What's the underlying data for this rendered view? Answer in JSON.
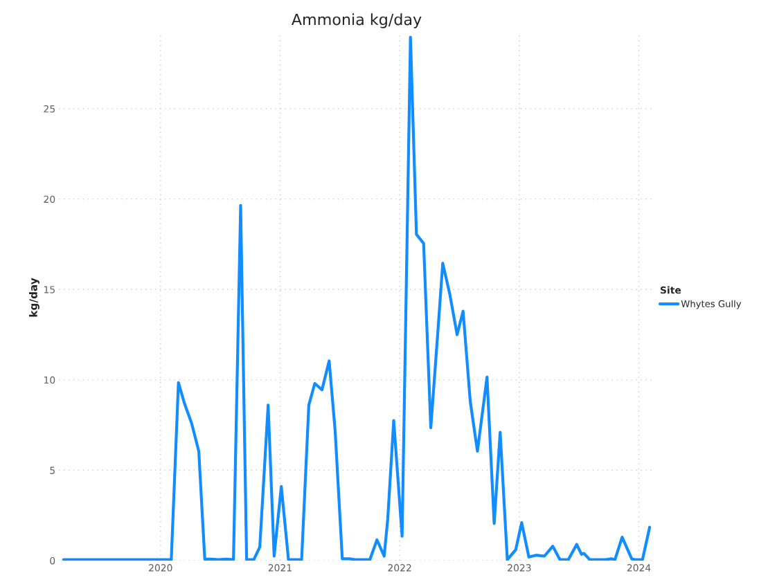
{
  "chart_data": {
    "type": "line",
    "title": "Ammonia kg/day",
    "ylabel": "kg/day",
    "legend_title": "Site",
    "x": [
      2019.19,
      2019.41,
      2020.09,
      2020.15,
      2020.2,
      2020.26,
      2020.32,
      2020.37,
      2020.43,
      2020.48,
      2020.55,
      2020.61,
      2020.67,
      2020.72,
      2020.78,
      2020.83,
      2020.9,
      2020.95,
      2021.01,
      2021.07,
      2021.18,
      2021.24,
      2021.29,
      2021.35,
      2021.41,
      2021.46,
      2021.52,
      2021.58,
      2021.64,
      2021.75,
      2021.81,
      2021.87,
      2021.9,
      2021.95,
      2022.02,
      2022.09,
      2022.14,
      2022.2,
      2022.26,
      2022.32,
      2022.36,
      2022.42,
      2022.48,
      2022.53,
      2022.59,
      2022.65,
      2022.73,
      2022.79,
      2022.84,
      2022.9,
      2022.97,
      2023.02,
      2023.08,
      2023.14,
      2023.21,
      2023.28,
      2023.34,
      2023.41,
      2023.48,
      2023.52,
      2023.54,
      2023.59,
      2023.71,
      2023.77,
      2023.8,
      2023.86,
      2023.94,
      2023.97,
      2024.03,
      2024.09
    ],
    "series": [
      {
        "name": "Whytes Gully",
        "color": "#118dff",
        "values": [
          0.05,
          0.05,
          0.05,
          9.85,
          8.7,
          7.6,
          6.05,
          0.08,
          0.08,
          0.05,
          0.08,
          0.05,
          19.65,
          0.05,
          0.05,
          0.75,
          8.6,
          0.25,
          4.1,
          0.05,
          0.05,
          8.6,
          9.8,
          9.45,
          11.05,
          7.2,
          0.1,
          0.1,
          0.05,
          0.05,
          1.15,
          0.25,
          2.3,
          7.75,
          1.35,
          28.95,
          18.05,
          17.55,
          7.35,
          12.75,
          16.45,
          14.7,
          12.5,
          13.8,
          8.8,
          6.05,
          10.15,
          2.05,
          7.1,
          0.05,
          0.6,
          2.1,
          0.2,
          0.3,
          0.25,
          0.8,
          0.05,
          0.05,
          0.9,
          0.35,
          0.4,
          0.05,
          0.05,
          0.1,
          0.05,
          1.3,
          0.1,
          0.05,
          0.05,
          1.85
        ]
      }
    ],
    "xlim": [
      2019.15,
      2024.13
    ],
    "xticks": [
      2020,
      2021,
      2022,
      2023,
      2024
    ],
    "ylim": [
      0,
      29.1
    ],
    "yticks": [
      0,
      5,
      10,
      15,
      20,
      25
    ],
    "grid": true,
    "legend": "right",
    "line_style": "solid",
    "marker": "none"
  }
}
